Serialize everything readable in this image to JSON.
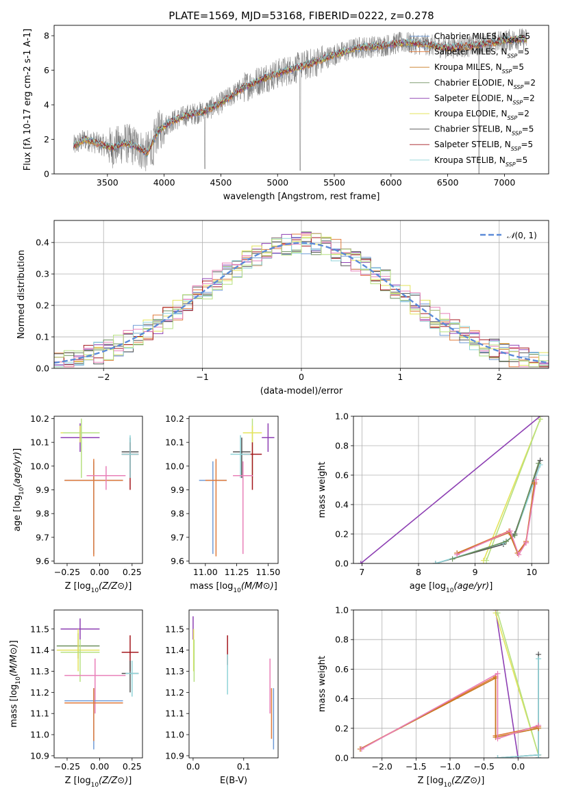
{
  "figure": {
    "title": "PLATE=1569, MJD=53168, FIBERID=0222, z=0.278"
  },
  "colors": {
    "Chabrier MILES": "#6f9bd6",
    "Salpeter MILES": "#e07a3a",
    "Kroupa MILES": "#c8781f",
    "Chabrier ELODIE": "#6c8f5c",
    "Salpeter ELODIE": "#8d3fb3",
    "Kroupa ELODIE": "#e3e35a",
    "Chabrier STELIB": "#505050",
    "Salpeter STELIB": "#a3161c",
    "Kroupa STELIB": "#8fd3d8",
    "pink": "#e87fb8",
    "lime": "#b6e080",
    "data": "#808080",
    "normal": "#5b8ad8"
  },
  "chart_data": [
    {
      "id": "spectrum",
      "type": "line",
      "title": "PLATE=1569, MJD=53168, FIBERID=0222, z=0.278",
      "xlabel": "wavelength [Angstrom, rest frame]",
      "ylabel": "Flux [f_λ 10^-17 erg cm^-2 s^-1 A^-1]",
      "xlim": [
        3030,
        7390
      ],
      "ylim": [
        0,
        8.6
      ],
      "xticks": [
        3500,
        4000,
        4500,
        5000,
        5500,
        6000,
        6500,
        7000
      ],
      "yticks": [
        0,
        2,
        4,
        6,
        8
      ],
      "grid": false,
      "legend_position": "top-right",
      "series": [
        {
          "name": "Chabrier MILES, N_SSP=5",
          "color": "#6f9bd6"
        },
        {
          "name": "Salpeter MILES, N_SSP=5",
          "color": "#e07a3a"
        },
        {
          "name": "Kroupa MILES, N_SSP=5",
          "color": "#c8781f"
        },
        {
          "name": "Chabrier ELODIE, N_SSP=2",
          "color": "#6c8f5c"
        },
        {
          "name": "Salpeter ELODIE, N_SSP=2",
          "color": "#8d3fb3"
        },
        {
          "name": "Kroupa ELODIE, N_SSP=2",
          "color": "#e3e35a"
        },
        {
          "name": "Chabrier STELIB, N_SSP=5",
          "color": "#505050"
        },
        {
          "name": "Salpeter STELIB, N_SSP=5",
          "color": "#a3161c"
        },
        {
          "name": "Kroupa STELIB, N_SSP=5",
          "color": "#8fd3d8"
        }
      ],
      "spectrum_anchors": [
        [
          3200,
          1.6
        ],
        [
          3300,
          2.0
        ],
        [
          3450,
          1.7
        ],
        [
          3550,
          1.5
        ],
        [
          3650,
          1.8
        ],
        [
          3750,
          1.6
        ],
        [
          3850,
          1.2
        ],
        [
          3950,
          2.5
        ],
        [
          4050,
          3.0
        ],
        [
          4200,
          3.4
        ],
        [
          4350,
          3.6
        ],
        [
          4500,
          4.1
        ],
        [
          4700,
          5.0
        ],
        [
          4900,
          5.6
        ],
        [
          5100,
          6.0
        ],
        [
          5300,
          6.4
        ],
        [
          5500,
          6.9
        ],
        [
          5700,
          7.3
        ],
        [
          5900,
          7.4
        ],
        [
          6100,
          7.6
        ],
        [
          6300,
          7.5
        ],
        [
          6500,
          7.3
        ],
        [
          6700,
          7.4
        ],
        [
          6900,
          7.6
        ],
        [
          7100,
          7.8
        ],
        [
          7200,
          7.8
        ]
      ]
    },
    {
      "id": "residuals",
      "type": "histogram",
      "xlabel": "(data-model)/error",
      "ylabel": "Normed distribution",
      "xlim": [
        -2.5,
        2.5
      ],
      "ylim": [
        0,
        0.47
      ],
      "xticks": [
        -2,
        -1,
        0,
        1,
        2
      ],
      "yticks": [
        0.0,
        0.1,
        0.2,
        0.3,
        0.4
      ],
      "grid": true,
      "legend_position": "top-right",
      "legend": [
        "N(0,1)"
      ],
      "bin_width": 0.1
    },
    {
      "id": "age_vs_Z",
      "type": "errorbar",
      "xlabel": "Z [log10(Z/Z⊙)]",
      "ylabel": "age [log10(age/yr)]",
      "xlim": [
        -0.35,
        0.33
      ],
      "ylim": [
        9.59,
        10.21
      ],
      "xticks": [
        -0.25,
        0.0,
        0.25
      ],
      "yticks": [
        9.6,
        9.7,
        9.8,
        9.9,
        10.0,
        10.1,
        10.2
      ],
      "grid": false,
      "points": [
        {
          "color": "#8d3fb3",
          "x": [
            -0.3,
            0.0
          ],
          "y": 10.12,
          "yerr": [
            10.06,
            10.18
          ]
        },
        {
          "color": "#e3e35a",
          "x": [
            -0.3,
            0.0
          ],
          "y": 10.14,
          "yerr": [
            10.1,
            10.17
          ]
        },
        {
          "color": "#b6e080",
          "x": [
            -0.28,
            0.0
          ],
          "y": 10.14,
          "yerr": [
            9.95,
            10.2
          ]
        },
        {
          "color": "#6f9bd6",
          "x": [
            -0.27,
            0.18
          ],
          "y": 9.94,
          "yerr": [
            9.63,
            10.02
          ]
        },
        {
          "color": "#e07a3a",
          "x": [
            -0.27,
            0.18
          ],
          "y": 9.94,
          "yerr": [
            9.62,
            10.03
          ]
        },
        {
          "color": "#e87fb8",
          "x": [
            -0.1,
            0.2
          ],
          "y": 9.96,
          "yerr": [
            9.9,
            10.0
          ]
        },
        {
          "color": "#505050",
          "x": [
            0.17,
            0.3
          ],
          "y": 10.06,
          "yerr": [
            9.95,
            10.12
          ]
        },
        {
          "color": "#a3161c",
          "x": [
            0.17,
            0.3
          ],
          "y": 10.05,
          "yerr": [
            9.9,
            10.1
          ]
        },
        {
          "color": "#8fd3d8",
          "x": [
            0.17,
            0.3
          ],
          "y": 10.05,
          "yerr": [
            9.95,
            10.13
          ]
        }
      ]
    },
    {
      "id": "age_vs_mass",
      "type": "errorbar",
      "xlabel": "mass [log10(M/M⊙)]",
      "ylabel": "",
      "xlim": [
        10.87,
        11.58
      ],
      "ylim": [
        9.59,
        10.21
      ],
      "xticks": [
        11.0,
        11.25,
        11.5
      ],
      "yticks": [
        9.6,
        9.7,
        9.8,
        9.9,
        10.0,
        10.1,
        10.2
      ],
      "grid": false,
      "points": [
        {
          "color": "#8d3fb3",
          "x": [
            11.45,
            11.55
          ],
          "y": 10.12,
          "yerr": [
            10.06,
            10.18
          ]
        },
        {
          "color": "#b6e080",
          "x": [
            11.3,
            11.45
          ],
          "y": 10.14,
          "yerr": [
            9.95,
            10.2
          ]
        },
        {
          "color": "#e3e35a",
          "x": [
            11.3,
            11.45
          ],
          "y": 10.14,
          "yerr": [
            10.1,
            10.17
          ]
        },
        {
          "color": "#505050",
          "x": [
            11.22,
            11.36
          ],
          "y": 10.06,
          "yerr": [
            9.95,
            10.12
          ]
        },
        {
          "color": "#a3161c",
          "x": [
            11.3,
            11.45
          ],
          "y": 10.05,
          "yerr": [
            9.9,
            10.1
          ]
        },
        {
          "color": "#8fd3d8",
          "x": [
            11.2,
            11.36
          ],
          "y": 10.05,
          "yerr": [
            9.95,
            10.13
          ]
        },
        {
          "color": "#e87fb8",
          "x": [
            11.22,
            11.38
          ],
          "y": 9.96,
          "yerr": [
            9.63,
            10.02
          ]
        },
        {
          "color": "#6f9bd6",
          "x": [
            10.95,
            11.17
          ],
          "y": 9.94,
          "yerr": [
            9.63,
            10.02
          ]
        },
        {
          "color": "#e07a3a",
          "x": [
            11.0,
            11.17
          ],
          "y": 9.94,
          "yerr": [
            9.62,
            10.03
          ]
        }
      ]
    },
    {
      "id": "massweight_vs_age",
      "type": "line",
      "xlabel": "age [log10(age/yr)]",
      "ylabel": "mass weight",
      "xlim": [
        6.85,
        10.3
      ],
      "ylim": [
        0,
        1.0
      ],
      "xticks": [
        7,
        8,
        9,
        10
      ],
      "yticks": [
        0.0,
        0.2,
        0.4,
        0.6,
        0.8,
        1.0
      ],
      "grid": true,
      "series": [
        {
          "color": "#8d3fb3",
          "x": [
            6.98,
            10.15
          ],
          "y": [
            0.0,
            1.0
          ]
        },
        {
          "color": "#e3e35a",
          "x": [
            9.15,
            10.15
          ],
          "y": [
            0.02,
            0.98
          ]
        },
        {
          "color": "#b6e080",
          "x": [
            9.2,
            10.15
          ],
          "y": [
            0.02,
            0.98
          ]
        },
        {
          "color": "#505050",
          "x": [
            8.3,
            9.5,
            9.7,
            10.15
          ],
          "y": [
            0.0,
            0.13,
            0.2,
            0.7
          ]
        },
        {
          "color": "#8fd3d8",
          "x": [
            8.3,
            9.5,
            9.7,
            10.15
          ],
          "y": [
            0.0,
            0.14,
            0.19,
            0.67
          ]
        },
        {
          "color": "#6c8f5c",
          "x": [
            8.6,
            9.55,
            9.7,
            10.12
          ],
          "y": [
            0.03,
            0.15,
            0.19,
            0.68
          ]
        },
        {
          "color": "#e07a3a",
          "x": [
            8.68,
            9.6,
            9.75,
            9.9,
            10.05
          ],
          "y": [
            0.07,
            0.22,
            0.07,
            0.15,
            0.55
          ]
        },
        {
          "color": "#c8781f",
          "x": [
            8.68,
            9.6,
            9.75,
            9.9,
            10.05
          ],
          "y": [
            0.07,
            0.21,
            0.07,
            0.14,
            0.54
          ]
        },
        {
          "color": "#e87fb8",
          "x": [
            8.68,
            9.62,
            9.77,
            9.9,
            10.08
          ],
          "y": [
            0.06,
            0.22,
            0.06,
            0.14,
            0.57
          ]
        }
      ]
    },
    {
      "id": "mass_vs_Z",
      "type": "errorbar",
      "xlabel": "Z [log10(Z/Z⊙)]",
      "ylabel": "mass [log10(M/M⊙)]",
      "xlim": [
        -0.35,
        0.33
      ],
      "ylim": [
        10.89,
        11.59
      ],
      "xticks": [
        -0.25,
        0.0,
        0.25
      ],
      "yticks": [
        10.9,
        11.0,
        11.1,
        11.2,
        11.3,
        11.4,
        11.5
      ],
      "grid": false,
      "points": [
        {
          "color": "#8d3fb3",
          "x": [
            -0.3,
            0.0
          ],
          "y": 11.5,
          "yerr": [
            11.45,
            11.55
          ]
        },
        {
          "color": "#6c8f5c",
          "x": [
            -0.33,
            0.0
          ],
          "y": 11.42,
          "yerr": [
            11.36,
            11.48
          ]
        },
        {
          "color": "#e3e35a",
          "x": [
            -0.33,
            0.0
          ],
          "y": 11.4,
          "yerr": [
            11.3,
            11.5
          ]
        },
        {
          "color": "#b6e080",
          "x": [
            -0.3,
            0.0
          ],
          "y": 11.39,
          "yerr": [
            11.25,
            11.45
          ]
        },
        {
          "color": "#a3161c",
          "x": [
            0.17,
            0.3
          ],
          "y": 11.39,
          "yerr": [
            11.3,
            11.47
          ]
        },
        {
          "color": "#505050",
          "x": [
            0.17,
            0.3
          ],
          "y": 11.29,
          "yerr": [
            11.2,
            11.35
          ]
        },
        {
          "color": "#e87fb8",
          "x": [
            -0.27,
            0.2
          ],
          "y": 11.28,
          "yerr": [
            11.1,
            11.36
          ]
        },
        {
          "color": "#8fd3d8",
          "x": [
            0.2,
            0.3
          ],
          "y": 11.29,
          "yerr": [
            11.18,
            11.35
          ]
        },
        {
          "color": "#6f9bd6",
          "x": [
            -0.27,
            0.18
          ],
          "y": 11.16,
          "yerr": [
            10.93,
            11.22
          ]
        },
        {
          "color": "#e07a3a",
          "x": [
            -0.27,
            0.18
          ],
          "y": 11.15,
          "yerr": [
            10.97,
            11.22
          ]
        }
      ]
    },
    {
      "id": "mass_vs_EBV",
      "type": "errorbar",
      "xlabel": "E(B-V)",
      "ylabel": "",
      "xlim": [
        -0.008,
        0.168
      ],
      "ylim": [
        10.89,
        11.59
      ],
      "xticks": [
        0.0,
        0.1
      ],
      "xticklabels": [
        "0.0",
        "0.1"
      ],
      "yticks": [
        10.9,
        11.0,
        11.1,
        11.2,
        11.3,
        11.4,
        11.5
      ],
      "grid": false,
      "points": [
        {
          "color": "#8d3fb3",
          "x": 0.0,
          "yerr": [
            11.45,
            11.56
          ]
        },
        {
          "color": "#e3e35a",
          "x": 0.001,
          "yerr": [
            11.3,
            11.5
          ]
        },
        {
          "color": "#b6e080",
          "x": 0.002,
          "yerr": [
            11.25,
            11.45
          ]
        },
        {
          "color": "#a3161c",
          "x": 0.068,
          "yerr": [
            11.33,
            11.47
          ]
        },
        {
          "color": "#8fd3d8",
          "x": 0.068,
          "yerr": [
            11.19,
            11.38
          ]
        },
        {
          "color": "#e87fb8",
          "x": 0.152,
          "yerr": [
            11.1,
            11.36
          ]
        },
        {
          "color": "#e07a3a",
          "x": 0.155,
          "yerr": [
            10.98,
            11.22
          ]
        },
        {
          "color": "#6f9bd6",
          "x": 0.159,
          "yerr": [
            10.93,
            11.22
          ]
        }
      ]
    },
    {
      "id": "massweight_vs_Z",
      "type": "line",
      "xlabel": "Z [log10(Z/Z⊙)]",
      "ylabel": "mass weight",
      "xlim": [
        -2.42,
        0.45
      ],
      "ylim": [
        0,
        1.0
      ],
      "xticks": [
        -2.0,
        -1.5,
        -1.0,
        -0.5,
        0.0
      ],
      "yticks": [
        0.0,
        0.2,
        0.4,
        0.6,
        0.8,
        1.0
      ],
      "grid": true,
      "series": [
        {
          "color": "#8d3fb3",
          "x": [
            -0.33,
            0.0
          ],
          "y": [
            1.0,
            0.0
          ]
        },
        {
          "color": "#e3e35a",
          "x": [
            -0.33,
            0.3
          ],
          "y": [
            0.98,
            0.02
          ]
        },
        {
          "color": "#b6e080",
          "x": [
            -0.3,
            0.3
          ],
          "y": [
            0.98,
            0.02
          ]
        },
        {
          "color": "#505050",
          "x": [
            -0.3,
            0.3,
            0.3,
            0.3
          ],
          "y": [
            0.0,
            0.02,
            0.7,
            0.0
          ]
        },
        {
          "color": "#8fd3d8",
          "x": [
            -0.3,
            0.3,
            0.3,
            0.3
          ],
          "y": [
            0.0,
            0.02,
            0.67,
            0.0
          ]
        },
        {
          "color": "#e07a3a",
          "x": [
            -2.32,
            -0.33,
            -0.33,
            0.3
          ],
          "y": [
            0.06,
            0.55,
            0.15,
            0.21
          ]
        },
        {
          "color": "#c8781f",
          "x": [
            -2.32,
            -0.33,
            -0.33,
            0.3
          ],
          "y": [
            0.06,
            0.54,
            0.14,
            0.2
          ]
        },
        {
          "color": "#e87fb8",
          "x": [
            -2.3,
            -0.3,
            -0.3,
            0.3
          ],
          "y": [
            0.06,
            0.57,
            0.13,
            0.22
          ]
        }
      ]
    }
  ]
}
